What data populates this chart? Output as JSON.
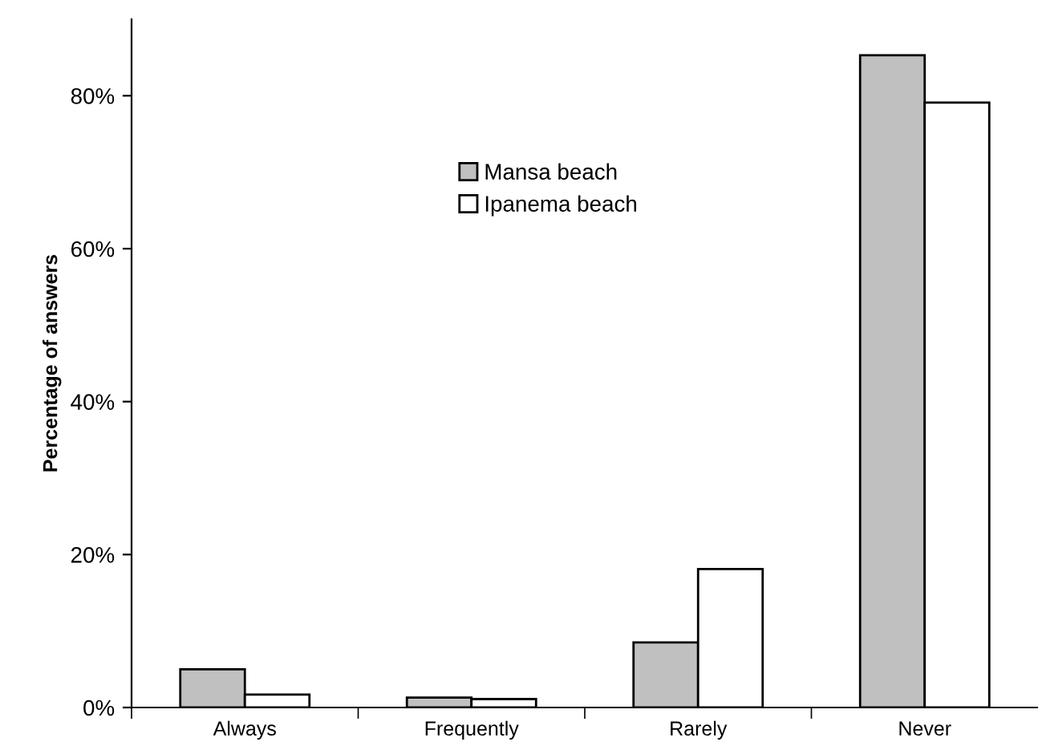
{
  "chart_data": {
    "type": "bar",
    "ylabel": "Percentage of answers",
    "categories": [
      "Always",
      "Frequently",
      "Rarely",
      "Never"
    ],
    "series": [
      {
        "name": "Mansa beach",
        "color": "#c0c0c0",
        "values": [
          5.0,
          1.3,
          8.5,
          85.3
        ]
      },
      {
        "name": "Ipanema beach",
        "color": "#ffffff",
        "values": [
          1.7,
          1.1,
          18.1,
          79.1
        ]
      }
    ],
    "ylim": [
      0,
      90
    ],
    "yticks": [
      {
        "value": 0,
        "label": "0%"
      },
      {
        "value": 20,
        "label": "20%"
      },
      {
        "value": 40,
        "label": "40%"
      },
      {
        "value": 60,
        "label": "60%"
      },
      {
        "value": 80,
        "label": "80%"
      }
    ],
    "grid": false,
    "legend": "top"
  }
}
